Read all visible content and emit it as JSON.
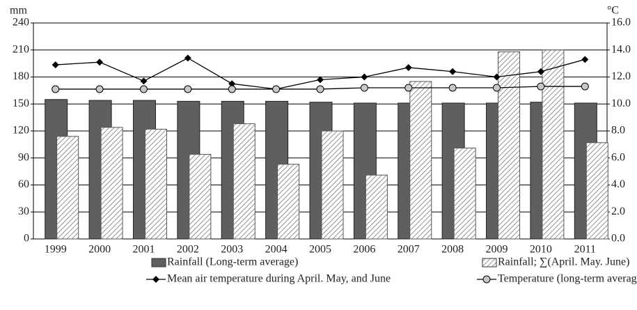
{
  "chart_data": {
    "type": "bar",
    "y_label": "mm",
    "y2_label": "°C",
    "categories": [
      "1999",
      "2000",
      "2001",
      "2002",
      "2003",
      "2004",
      "2005",
      "2006",
      "2007",
      "2008",
      "2009",
      "2010",
      "2011"
    ],
    "series": [
      {
        "name": "Rainfall (Long-term average)",
        "type": "bar",
        "color": "#5f5f5f",
        "values": [
          155,
          154,
          154,
          153,
          153,
          153,
          152,
          151,
          151,
          151,
          151,
          152,
          151
        ]
      },
      {
        "name": "Rainfall; ∑(April. May. June)",
        "type": "bar",
        "color": "#777777",
        "hatch": true,
        "values": [
          114,
          124,
          122,
          94,
          128,
          83,
          120,
          71,
          175,
          101,
          208,
          210,
          107
        ]
      },
      {
        "name": "Mean air temperature during April. May, and June",
        "type": "line",
        "marker": "diamond",
        "color": "#000000",
        "axis": "y2",
        "values": [
          12.9,
          13.1,
          11.7,
          13.4,
          11.5,
          11.1,
          11.8,
          12.0,
          12.7,
          12.4,
          12.0,
          12.4,
          13.3
        ]
      },
      {
        "name": "Temperature (long-term average)",
        "type": "line",
        "marker": "circle",
        "color": "#000000",
        "axis": "y2",
        "values": [
          11.1,
          11.1,
          11.1,
          11.1,
          11.1,
          11.1,
          11.1,
          11.2,
          11.2,
          11.2,
          11.2,
          11.3,
          11.3
        ]
      }
    ],
    "ylim": [
      0,
      240
    ],
    "yticks": [
      0,
      30,
      60,
      90,
      120,
      150,
      180,
      210,
      240
    ],
    "y2lim": [
      0,
      16
    ],
    "y2ticks": [
      {
        "value": 0,
        "label": "0.0"
      },
      {
        "value": 2,
        "label": "2.0"
      },
      {
        "value": 4,
        "label": "4.0"
      },
      {
        "value": 6,
        "label": "6.0"
      },
      {
        "value": 8,
        "label": "8.0"
      },
      {
        "value": 10,
        "label": "10.0"
      },
      {
        "value": 12,
        "label": "12.0"
      },
      {
        "value": 14,
        "label": "14.0"
      },
      {
        "value": 16,
        "label": "16.0"
      }
    ],
    "grid": true
  }
}
